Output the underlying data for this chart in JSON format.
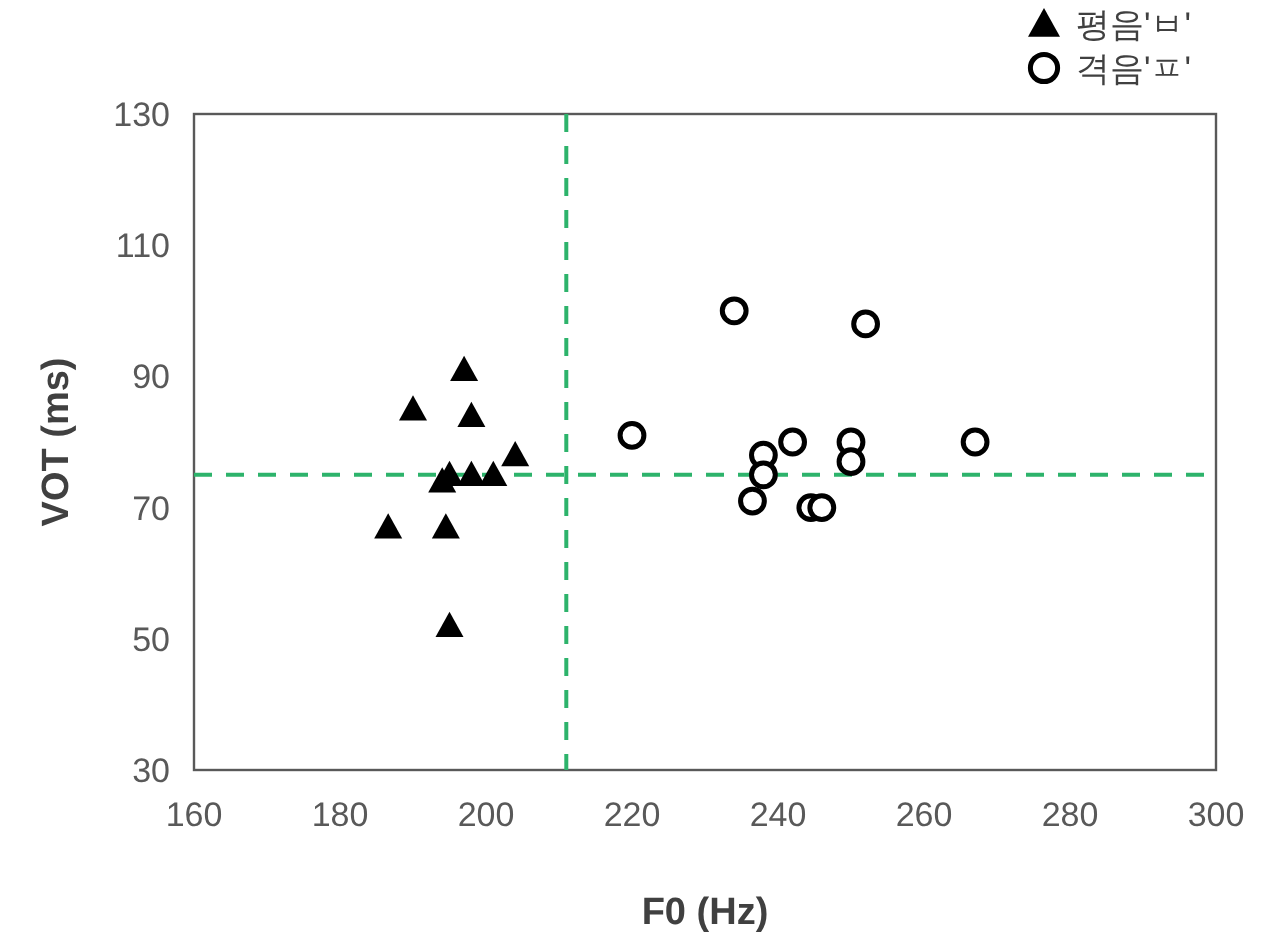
{
  "chart_data": {
    "type": "scatter",
    "xlabel": "F0 (Hz)",
    "ylabel": "VOT (ms)",
    "xlim": [
      160,
      300
    ],
    "xticks": [
      160,
      180,
      200,
      220,
      240,
      260,
      280,
      300
    ],
    "ylim": [
      30,
      130
    ],
    "yticks": [
      30,
      50,
      70,
      90,
      110,
      130
    ],
    "grid": false,
    "legend": "top right",
    "series": [
      {
        "name": "평음'ㅂ'",
        "color": "#000000",
        "marker": "triangle",
        "x": [
          197,
          190,
          198,
          204,
          194,
          198,
          201,
          195,
          186.6,
          194.5,
          195
        ],
        "values": [
          91,
          85,
          84,
          78,
          74,
          75,
          75,
          75,
          67,
          67,
          52
        ]
      },
      {
        "name": "격음'ㅍ'",
        "color": "#000000",
        "marker": "circle",
        "x": [
          234,
          252,
          220,
          238,
          238,
          236.5,
          242,
          250,
          250,
          244.5,
          246,
          267
        ],
        "values": [
          100,
          98,
          81,
          78,
          75,
          71,
          80,
          80,
          77,
          70,
          70,
          80
        ]
      }
    ],
    "ref_lines": [
      {
        "axis": "x",
        "value": 211,
        "color": "#2db36b",
        "line_style": "dashed"
      },
      {
        "axis": "y",
        "value": 75,
        "color": "#2db36b",
        "line_style": "dashed"
      }
    ]
  }
}
